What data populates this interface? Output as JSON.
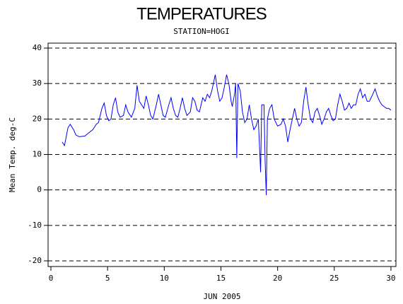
{
  "chart_data": {
    "type": "line",
    "title": "TEMPERATURES",
    "subtitle": "STATION=HOGI",
    "x_label": "JUN 2005",
    "y_label": "Mean Temp. deg-C",
    "xlim": [
      -0.25,
      30.44
    ],
    "xticks": [
      0,
      5,
      10,
      15,
      20,
      25,
      30
    ],
    "ylim": [
      -21.6,
      41.4
    ],
    "yticks": [
      -20,
      -10,
      0,
      10,
      20,
      30,
      40
    ],
    "grid": true,
    "x": [
      1.0,
      1.2,
      1.5,
      1.7,
      2.0,
      2.2,
      2.5,
      3.0,
      3.3,
      3.7,
      4.0,
      4.2,
      4.5,
      4.7,
      4.9,
      5.1,
      5.3,
      5.5,
      5.7,
      5.9,
      6.1,
      6.4,
      6.6,
      6.8,
      7.1,
      7.4,
      7.6,
      7.8,
      8.0,
      8.2,
      8.4,
      8.6,
      8.8,
      9.0,
      9.3,
      9.5,
      9.7,
      9.9,
      10.1,
      10.4,
      10.6,
      10.8,
      11.0,
      11.2,
      11.4,
      11.6,
      11.8,
      12.0,
      12.3,
      12.5,
      12.7,
      12.9,
      13.1,
      13.4,
      13.6,
      13.8,
      14.0,
      14.2,
      14.5,
      14.7,
      14.9,
      15.1,
      15.3,
      15.5,
      15.7,
      15.9,
      16.0,
      16.2,
      16.3,
      16.4,
      16.5,
      16.7,
      16.9,
      17.1,
      17.3,
      17.5,
      17.7,
      17.9,
      18.1,
      18.3,
      18.5,
      18.6,
      18.8,
      18.9,
      19.0,
      19.1,
      19.3,
      19.5,
      19.7,
      20.0,
      20.3,
      20.5,
      20.7,
      20.9,
      21.1,
      21.3,
      21.5,
      21.7,
      21.9,
      22.1,
      22.3,
      22.5,
      22.7,
      22.9,
      23.1,
      23.3,
      23.5,
      23.7,
      23.9,
      24.1,
      24.3,
      24.5,
      24.7,
      24.9,
      25.1,
      25.3,
      25.5,
      25.7,
      25.9,
      26.1,
      26.3,
      26.5,
      26.7,
      26.9,
      27.1,
      27.3,
      27.5,
      27.7,
      27.9,
      28.1,
      28.4,
      28.6,
      28.8,
      29.0,
      29.2,
      29.4,
      29.6,
      29.8,
      30.0
    ],
    "series": [
      {
        "name": "HOGI",
        "color": "#0000ff",
        "values": [
          13.5,
          12.5,
          17.5,
          18.5,
          17,
          15.5,
          15,
          15.2,
          16,
          17,
          18.5,
          19,
          23,
          24.5,
          21,
          19.5,
          20,
          24,
          26,
          22,
          20.5,
          21,
          24,
          22,
          20.5,
          23,
          29.5,
          25,
          24,
          23,
          26.5,
          24,
          21,
          20,
          24,
          27,
          24,
          21,
          20.5,
          24,
          26,
          23,
          21,
          20.5,
          23,
          26,
          23,
          21,
          22,
          26,
          25,
          22.5,
          22,
          26,
          25,
          27,
          26,
          28,
          32.5,
          28,
          25,
          26,
          29,
          32.5,
          30,
          25,
          23.5,
          27,
          30,
          9,
          30,
          28,
          22,
          19,
          20,
          24,
          20,
          17,
          18,
          20,
          5,
          24,
          24,
          8,
          -1.5,
          20,
          23,
          24,
          20,
          18,
          18.5,
          20,
          18,
          13.5,
          17,
          20,
          23,
          20,
          18,
          19,
          25,
          29,
          24,
          20,
          19,
          22,
          23,
          21,
          18.5,
          20,
          22,
          23,
          21,
          19.5,
          20,
          24,
          27,
          25,
          22.5,
          23,
          24.5,
          23,
          24,
          24,
          27,
          28.5,
          26,
          27,
          25,
          25,
          27,
          28.5,
          26.5,
          25,
          24,
          23.5,
          23,
          23,
          22.5
        ]
      }
    ]
  }
}
